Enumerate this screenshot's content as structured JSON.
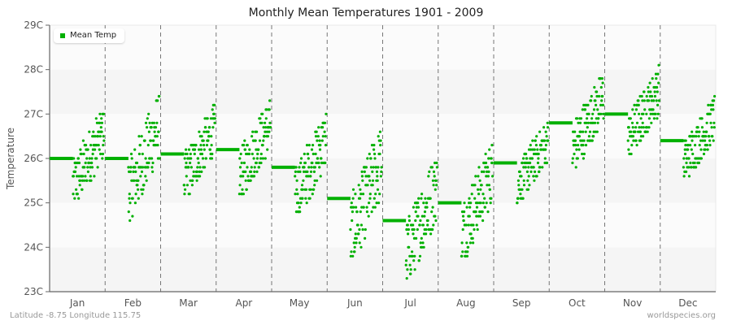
{
  "title": "Monthly Mean Temperatures 1901 - 2009",
  "footer": {
    "left": "Latitude -8.75 Longitude 115.75",
    "right": "worldspecies.org"
  },
  "legend": {
    "label": "Mean Temp",
    "color": "#00b000"
  },
  "chart_data": {
    "type": "scatter",
    "title": "Monthly Mean Temperatures 1901 - 2009",
    "xlabel": "",
    "ylabel": "Temperature",
    "ylim": [
      23,
      29
    ],
    "y_ticks": [
      "23C",
      "24C",
      "25C",
      "26C",
      "27C",
      "28C",
      "29C"
    ],
    "categories": [
      "Jan",
      "Feb",
      "Mar",
      "Apr",
      "May",
      "Jun",
      "Jul",
      "Aug",
      "Sep",
      "Oct",
      "Nov",
      "Dec"
    ],
    "series": [
      {
        "name": "Mean Temp",
        "color": "#00b000",
        "means": [
          26.0,
          26.0,
          26.1,
          26.2,
          25.8,
          25.1,
          24.6,
          25.0,
          25.9,
          26.8,
          27.0,
          26.4
        ],
        "min": [
          24.8,
          24.6,
          25.2,
          25.2,
          24.8,
          23.8,
          23.3,
          23.8,
          25.0,
          25.7,
          26.1,
          25.6
        ],
        "max": [
          27.0,
          27.4,
          27.3,
          27.4,
          27.2,
          26.9,
          26.2,
          26.4,
          26.8,
          27.9,
          28.1,
          27.4
        ]
      }
    ],
    "grid": {
      "horizontal_bands": true,
      "vertical_dashed_month_separators": true
    },
    "legend_position": "top-left"
  }
}
